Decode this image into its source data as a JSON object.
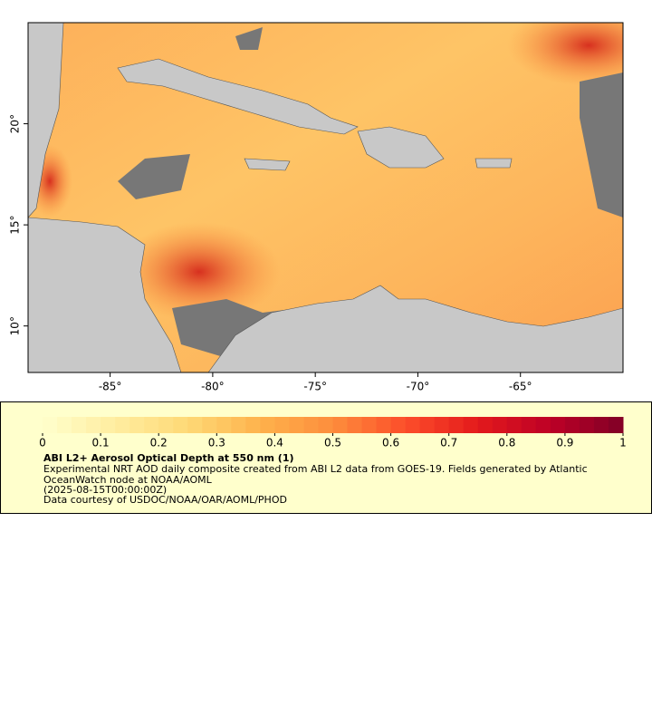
{
  "map": {
    "xlim": [
      -89,
      -60
    ],
    "ylim": [
      7.7,
      25
    ],
    "xticks": [
      {
        "value": -85,
        "label": "-85°"
      },
      {
        "value": -80,
        "label": "-80°"
      },
      {
        "value": -75,
        "label": "-75°"
      },
      {
        "value": -70,
        "label": "-70°"
      },
      {
        "value": -65,
        "label": "-65°"
      }
    ],
    "yticks": [
      {
        "value": 10,
        "label": "10°"
      },
      {
        "value": 15,
        "label": "15°"
      },
      {
        "value": 20,
        "label": "20°"
      }
    ]
  },
  "colorbar": {
    "lim": [
      0,
      1
    ],
    "ticks": [
      0,
      0.1,
      0.2,
      0.3,
      0.4,
      0.5,
      0.6,
      0.7,
      0.8,
      0.9,
      1
    ],
    "levels": 40,
    "colormap": [
      "#ffffcc",
      "#ffeda0",
      "#fed976",
      "#feb24c",
      "#fd8d3c",
      "#fc4e2a",
      "#e31a1c",
      "#bd0026",
      "#800026"
    ]
  },
  "legend": {
    "title": "ABI L2+ Aerosol Optical Depth at 550 nm (1)",
    "summary_lines": [
      "Experimental NRT AOD daily composite created from ABI L2 data from GOES-19. Fields generated by Atlantic",
      "OceanWatch node at NOAA/AOML"
    ],
    "time": "(2025-08-15T00:00:00Z)",
    "credit": "Data courtesy of USDOC/NOAA/OAR/AOML/PHOD"
  }
}
